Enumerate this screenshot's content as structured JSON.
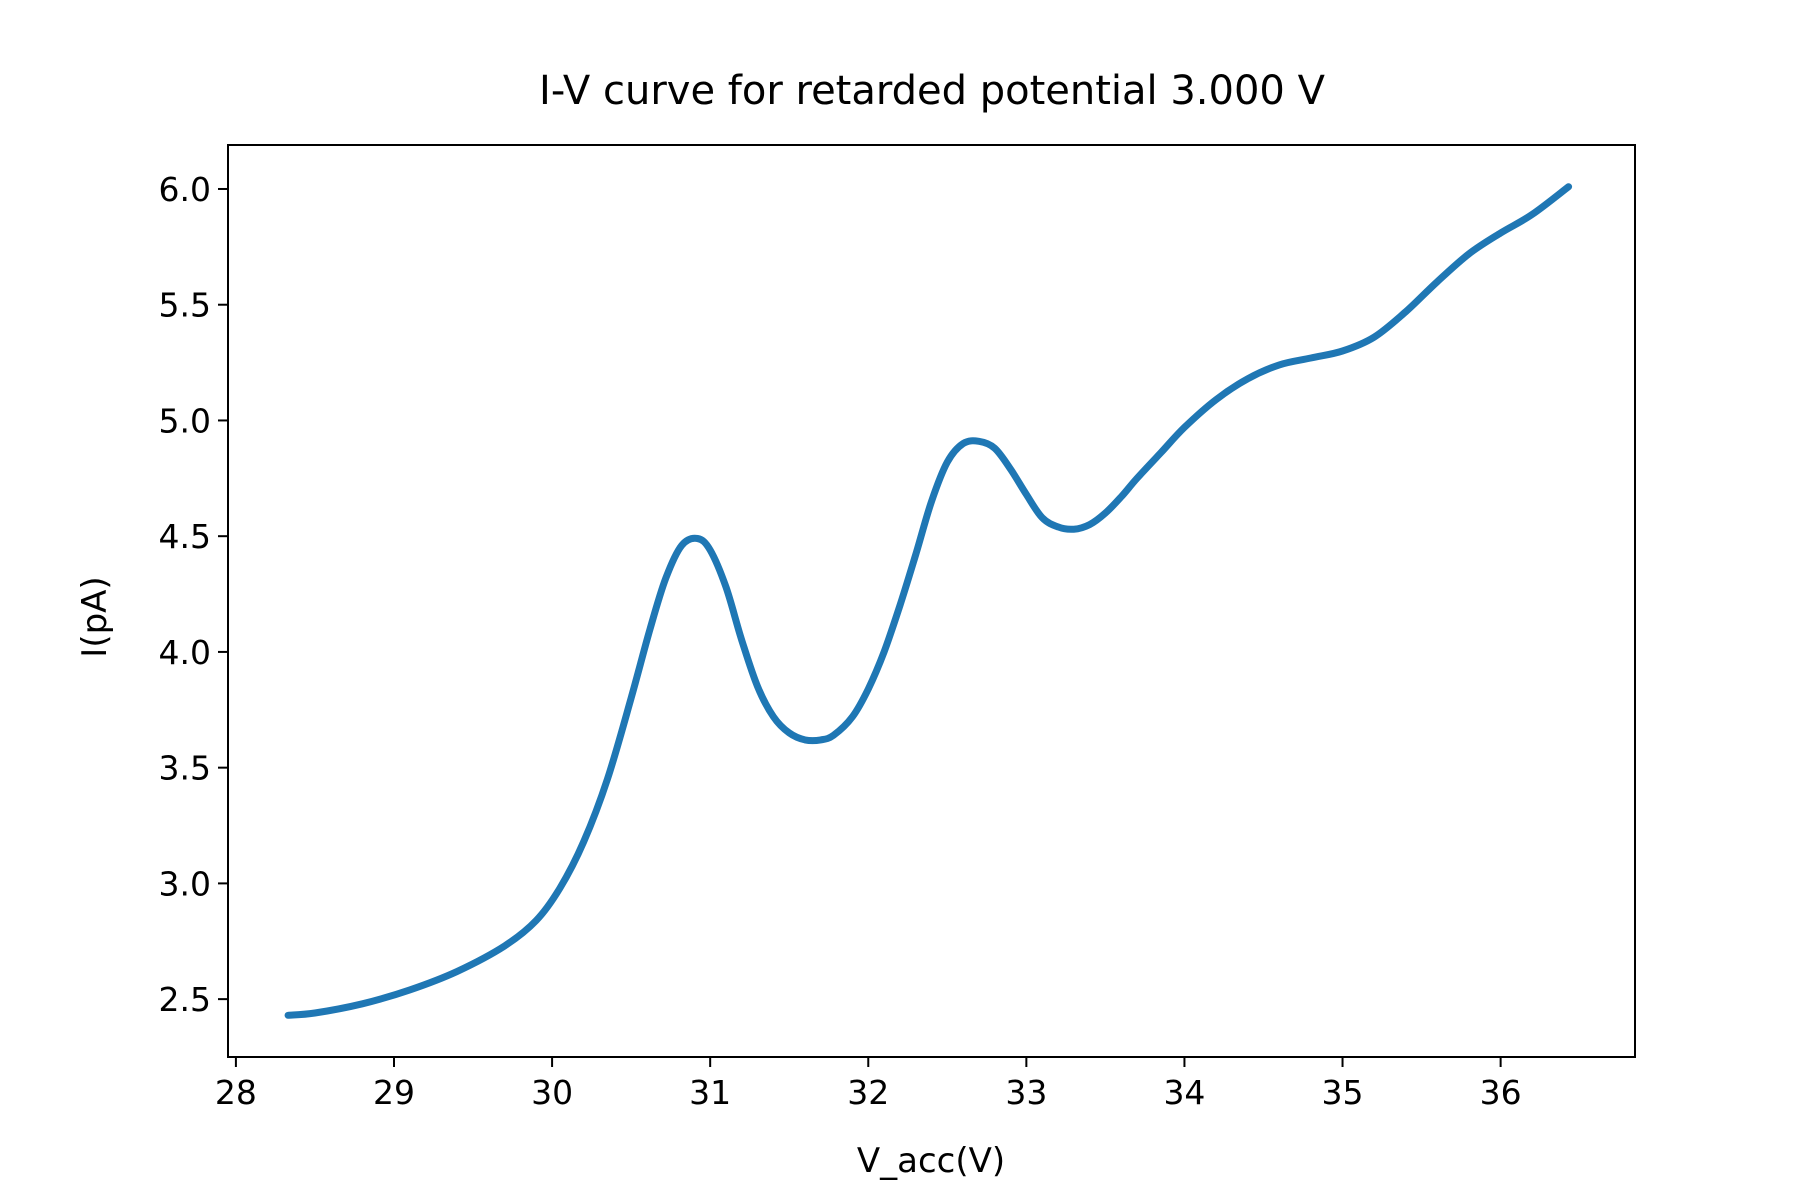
{
  "chart_data": {
    "type": "line",
    "title": "I-V curve for retarded potential 3.000 V",
    "xlabel": "V_acc(V)",
    "ylabel": "I(pA)",
    "xlim": [
      27.95,
      36.85
    ],
    "ylim": [
      2.25,
      6.19
    ],
    "xticks": [
      28,
      29,
      30,
      31,
      32,
      33,
      34,
      35,
      36
    ],
    "xtick_labels": [
      "28",
      "29",
      "30",
      "31",
      "32",
      "33",
      "34",
      "35",
      "36"
    ],
    "yticks": [
      2.5,
      3.0,
      3.5,
      4.0,
      4.5,
      5.0,
      5.5,
      6.0
    ],
    "ytick_labels": [
      "2.5",
      "3.0",
      "3.5",
      "4.0",
      "4.5",
      "5.0",
      "5.5",
      "6.0"
    ],
    "grid": false,
    "series": [
      {
        "color": "#1f77b4",
        "x": [
          28.33,
          28.5,
          28.8,
          29.1,
          29.4,
          29.7,
          29.9,
          30.05,
          30.2,
          30.35,
          30.5,
          30.62,
          30.72,
          30.82,
          30.92,
          31.0,
          31.1,
          31.2,
          31.3,
          31.4,
          31.5,
          31.6,
          31.7,
          31.78,
          31.9,
          32.0,
          32.1,
          32.2,
          32.3,
          32.4,
          32.5,
          32.6,
          32.7,
          32.8,
          32.9,
          33.0,
          33.1,
          33.2,
          33.3,
          33.4,
          33.5,
          33.6,
          33.7,
          33.85,
          34.0,
          34.2,
          34.4,
          34.6,
          34.8,
          35.0,
          35.2,
          35.4,
          35.6,
          35.8,
          36.0,
          36.2,
          36.43
        ],
        "y": [
          2.43,
          2.44,
          2.48,
          2.54,
          2.62,
          2.73,
          2.84,
          2.98,
          3.18,
          3.45,
          3.8,
          4.1,
          4.32,
          4.46,
          4.49,
          4.44,
          4.28,
          4.05,
          3.85,
          3.72,
          3.65,
          3.62,
          3.62,
          3.64,
          3.72,
          3.84,
          4.0,
          4.2,
          4.42,
          4.65,
          4.82,
          4.9,
          4.91,
          4.88,
          4.79,
          4.68,
          4.58,
          4.54,
          4.53,
          4.55,
          4.6,
          4.67,
          4.75,
          4.86,
          4.97,
          5.09,
          5.18,
          5.24,
          5.27,
          5.3,
          5.36,
          5.47,
          5.6,
          5.72,
          5.81,
          5.89,
          6.01
        ]
      }
    ]
  }
}
